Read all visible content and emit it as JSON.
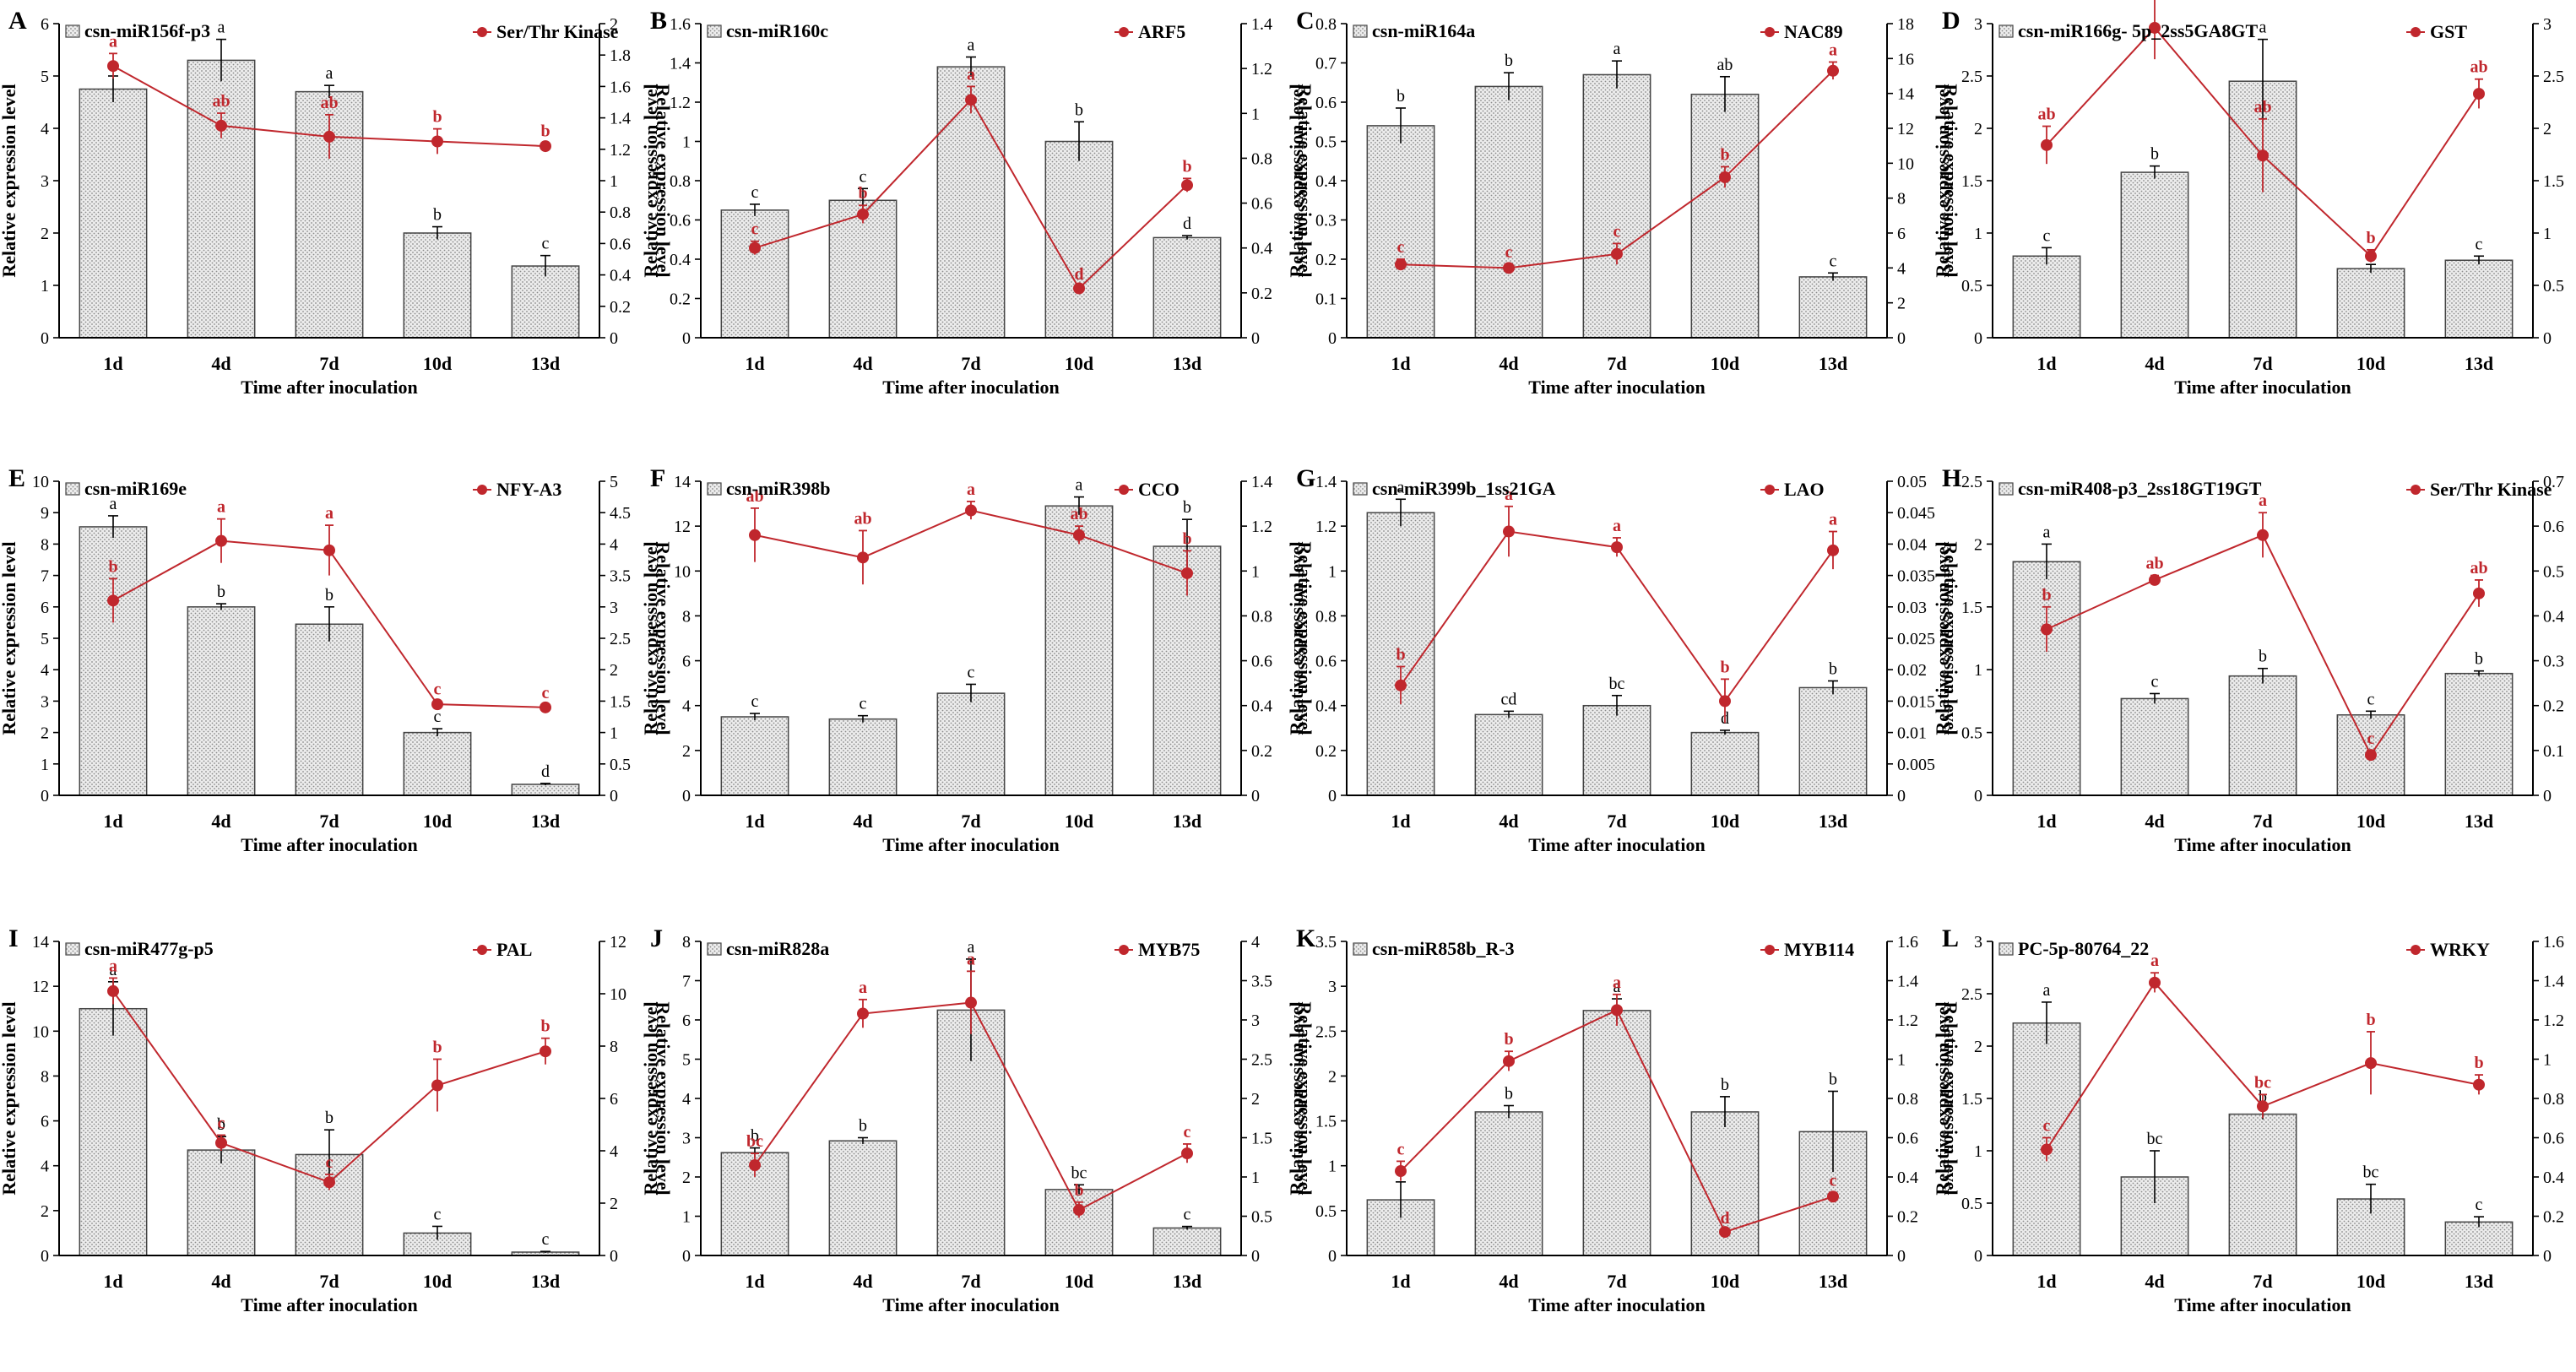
{
  "figure": {
    "common": {
      "xlabel": "Time after inoculation",
      "ylabel_left": "Relative expression level",
      "ylabel_right": "Relative expression level",
      "categories": [
        "1d",
        "4d",
        "7d",
        "10d",
        "13d"
      ]
    },
    "colors": {
      "bar_fill": "#d8d8d8",
      "line": "#c0272d",
      "axis": "#000000"
    }
  },
  "chart_data": [
    {
      "type": "bar+line",
      "panel": "A",
      "title": "",
      "bar_series": "csn-miR156f-p3",
      "line_series": "Ser/Thr Kinase",
      "xlabel": "Time after inoculation",
      "ylabel": "Relative expression level",
      "y2label": "Relative expression level",
      "categories": [
        "1d",
        "4d",
        "7d",
        "10d",
        "13d"
      ],
      "bar_values": [
        4.75,
        5.3,
        4.7,
        2.0,
        1.37
      ],
      "bar_err": [
        0.25,
        0.4,
        0.12,
        0.12,
        0.2
      ],
      "bar_letters": [
        "a",
        "a",
        "a",
        "b",
        "c"
      ],
      "line_values": [
        1.73,
        1.35,
        1.28,
        1.25,
        1.22
      ],
      "line_err": [
        0.08,
        0.08,
        0.14,
        0.08,
        0.02
      ],
      "line_letters": [
        "a",
        "ab",
        "ab",
        "b",
        "b"
      ],
      "ylim": [
        0,
        6
      ],
      "yticks": [
        "0",
        "1",
        "2",
        "3",
        "4",
        "5",
        "6"
      ],
      "y2lim": [
        0,
        2
      ],
      "y2ticks": [
        "0",
        "0.2",
        "0.4",
        "0.6",
        "0.8",
        "1",
        "1.2",
        "1.4",
        "1.6",
        "1.8",
        "2"
      ]
    },
    {
      "type": "bar+line",
      "panel": "B",
      "title": "",
      "bar_series": "csn-miR160c",
      "line_series": "ARF5",
      "xlabel": "Time after inoculation",
      "ylabel": "Relative expression level",
      "y2label": "Relative expression level",
      "categories": [
        "1d",
        "4d",
        "7d",
        "10d",
        "13d"
      ],
      "bar_values": [
        0.65,
        0.7,
        1.38,
        1.0,
        0.51
      ],
      "bar_err": [
        0.03,
        0.06,
        0.05,
        0.1,
        0.01
      ],
      "bar_letters": [
        "c",
        "c",
        "a",
        "b",
        "d"
      ],
      "line_values": [
        0.4,
        0.55,
        1.06,
        0.22,
        0.68
      ],
      "line_err": [
        0.03,
        0.04,
        0.06,
        0.01,
        0.03
      ],
      "line_letters": [
        "c",
        "b",
        "a",
        "d",
        "b"
      ],
      "ylim": [
        0,
        1.6
      ],
      "yticks": [
        "0",
        "0.2",
        "0.4",
        "0.6",
        "0.8",
        "1",
        "1.2",
        "1.4",
        "1.6"
      ],
      "y2lim": [
        0,
        1.4
      ],
      "y2ticks": [
        "0",
        "0.2",
        "0.4",
        "0.6",
        "0.8",
        "1",
        "1.2",
        "1.4"
      ]
    },
    {
      "type": "bar+line",
      "panel": "C",
      "title": "",
      "bar_series": "csn-miR164a",
      "line_series": "NAC89",
      "xlabel": "Time after inoculation",
      "ylabel": "Relative expression level",
      "y2label": "Relative expression level",
      "categories": [
        "1d",
        "4d",
        "7d",
        "10d",
        "13d"
      ],
      "bar_values": [
        0.54,
        0.64,
        0.67,
        0.62,
        0.155
      ],
      "bar_err": [
        0.045,
        0.035,
        0.035,
        0.045,
        0.01
      ],
      "bar_letters": [
        "b",
        "b",
        "a",
        "ab",
        "c"
      ],
      "line_values": [
        4.2,
        4.0,
        4.8,
        9.2,
        15.3
      ],
      "line_err": [
        0.3,
        0.2,
        0.6,
        0.6,
        0.5
      ],
      "line_letters": [
        "c",
        "c",
        "c",
        "b",
        "a"
      ],
      "ylim": [
        0,
        0.8
      ],
      "yticks": [
        "0",
        "0.1",
        "0.2",
        "0.3",
        "0.4",
        "0.5",
        "0.6",
        "0.7",
        "0.8"
      ],
      "y2lim": [
        0,
        18
      ],
      "y2ticks": [
        "0",
        "2",
        "4",
        "6",
        "8",
        "10",
        "12",
        "14",
        "16",
        "18"
      ]
    },
    {
      "type": "bar+line",
      "panel": "D",
      "title": "",
      "bar_series": "csn-miR166g- 5p_2ss5GA8GT",
      "line_series": "GST",
      "xlabel": "Time after inoculation",
      "ylabel": "Relative expression level",
      "y2label": "Relative expression level",
      "categories": [
        "1d",
        "4d",
        "7d",
        "10d",
        "13d"
      ],
      "bar_values": [
        0.78,
        1.58,
        2.45,
        0.66,
        0.74
      ],
      "bar_err": [
        0.08,
        0.06,
        0.4,
        0.04,
        0.04
      ],
      "bar_letters": [
        "c",
        "b",
        "a",
        "c",
        "c"
      ],
      "line_values": [
        1.84,
        2.96,
        1.74,
        0.78,
        2.33
      ],
      "line_err": [
        0.18,
        0.3,
        0.35,
        0.06,
        0.14
      ],
      "line_letters": [
        "ab",
        "a",
        "ab",
        "b",
        "ab"
      ],
      "ylim": [
        0,
        3
      ],
      "yticks": [
        "0",
        "0.5",
        "1",
        "1.5",
        "2",
        "2.5",
        "3"
      ],
      "y2lim": [
        0,
        3
      ],
      "y2ticks": [
        "0",
        "0.5",
        "1",
        "1.5",
        "2",
        "2.5",
        "3"
      ]
    },
    {
      "type": "bar+line",
      "panel": "E",
      "title": "",
      "bar_series": "csn-miR169e",
      "line_series": "NFY-A3",
      "xlabel": "Time after inoculation",
      "ylabel": "Relative expression level",
      "y2label": "Relative expression level",
      "categories": [
        "1d",
        "4d",
        "7d",
        "10d",
        "13d"
      ],
      "bar_values": [
        8.55,
        6.0,
        5.45,
        2.0,
        0.35
      ],
      "bar_err": [
        0.35,
        0.1,
        0.55,
        0.12,
        0.03
      ],
      "bar_letters": [
        "a",
        "b",
        "b",
        "c",
        "d"
      ],
      "line_values": [
        3.1,
        4.05,
        3.9,
        1.45,
        1.4
      ],
      "line_err": [
        0.35,
        0.35,
        0.4,
        0.05,
        0.04
      ],
      "line_letters": [
        "b",
        "a",
        "a",
        "c",
        "c"
      ],
      "ylim": [
        0,
        10
      ],
      "yticks": [
        "0",
        "1",
        "2",
        "3",
        "4",
        "5",
        "6",
        "7",
        "8",
        "9",
        "10"
      ],
      "y2lim": [
        0,
        5
      ],
      "y2ticks": [
        "0",
        "0.5",
        "1",
        "1.5",
        "2",
        "2.5",
        "3",
        "3.5",
        "4",
        "4.5",
        "5"
      ]
    },
    {
      "type": "bar+line",
      "panel": "F",
      "title": "",
      "bar_series": "csn-miR398b",
      "line_series": "CCO",
      "xlabel": "Time after inoculation",
      "ylabel": "Relative expression level",
      "y2label": "Relative expression level",
      "categories": [
        "1d",
        "4d",
        "7d",
        "10d",
        "13d"
      ],
      "bar_values": [
        3.5,
        3.4,
        4.55,
        12.9,
        11.1
      ],
      "bar_err": [
        0.15,
        0.15,
        0.4,
        0.4,
        1.2
      ],
      "bar_letters": [
        "c",
        "c",
        "c",
        "a",
        "b"
      ],
      "line_values": [
        1.16,
        1.06,
        1.27,
        1.16,
        0.99
      ],
      "line_err": [
        0.12,
        0.12,
        0.04,
        0.04,
        0.1
      ],
      "line_letters": [
        "ab",
        "ab",
        "a",
        "ab",
        "b"
      ],
      "ylim": [
        0,
        14
      ],
      "yticks": [
        "0",
        "2",
        "4",
        "6",
        "8",
        "10",
        "12",
        "14"
      ],
      "y2lim": [
        0,
        1.4
      ],
      "y2ticks": [
        "0",
        "0.2",
        "0.4",
        "0.6",
        "0.8",
        "1",
        "1.2",
        "1.4"
      ]
    },
    {
      "type": "bar+line",
      "panel": "G",
      "title": "",
      "bar_series": "csn-miR399b_1ss21GA",
      "line_series": "LAO",
      "xlabel": "Time after inoculation",
      "ylabel": "Relative expression level",
      "y2label": "Relative expression level",
      "categories": [
        "1d",
        "4d",
        "7d",
        "10d",
        "13d"
      ],
      "bar_values": [
        1.26,
        0.36,
        0.4,
        0.28,
        0.48
      ],
      "bar_err": [
        0.06,
        0.015,
        0.045,
        0.01,
        0.03
      ],
      "bar_letters": [
        "a",
        "cd",
        "bc",
        "d",
        "b"
      ],
      "line_values": [
        0.0175,
        0.042,
        0.0395,
        0.015,
        0.039
      ],
      "line_err": [
        0.003,
        0.004,
        0.0015,
        0.0035,
        0.003
      ],
      "line_letters": [
        "b",
        "a",
        "a",
        "b",
        "a"
      ],
      "ylim": [
        0,
        1.4
      ],
      "yticks": [
        "0",
        "0.2",
        "0.4",
        "0.6",
        "0.8",
        "1",
        "1.2",
        "1.4"
      ],
      "y2lim": [
        0,
        0.05
      ],
      "y2ticks": [
        "0",
        "0.005",
        "0.01",
        "0.015",
        "0.02",
        "0.025",
        "0.03",
        "0.035",
        "0.04",
        "0.045",
        "0.05"
      ]
    },
    {
      "type": "bar+line",
      "panel": "H",
      "title": "",
      "bar_series": "csn-miR408-p3_2ss18GT19GT",
      "line_series": "Ser/Thr Kinase",
      "xlabel": "Time after inoculation",
      "ylabel": "Relative expression level",
      "y2label": "Relative expression level",
      "categories": [
        "1d",
        "4d",
        "7d",
        "10d",
        "13d"
      ],
      "bar_values": [
        1.86,
        0.77,
        0.95,
        0.64,
        0.97
      ],
      "bar_err": [
        0.14,
        0.04,
        0.06,
        0.03,
        0.02
      ],
      "bar_letters": [
        "a",
        "c",
        "b",
        "c",
        "b"
      ],
      "line_values": [
        0.37,
        0.48,
        0.58,
        0.09,
        0.45
      ],
      "line_err": [
        0.05,
        0.01,
        0.05,
        0.01,
        0.03
      ],
      "line_letters": [
        "b",
        "ab",
        "a",
        "c",
        "ab"
      ],
      "ylim": [
        0,
        2.5
      ],
      "yticks": [
        "0",
        "0.5",
        "1",
        "1.5",
        "2",
        "2.5"
      ],
      "y2lim": [
        0,
        0.7
      ],
      "y2ticks": [
        "0",
        "0.1",
        "0.2",
        "0.3",
        "0.4",
        "0.5",
        "0.6",
        "0.7"
      ]
    },
    {
      "type": "bar+line",
      "panel": "I",
      "title": "",
      "bar_series": "csn-miR477g-p5",
      "line_series": "PAL",
      "xlabel": "Time after inoculation",
      "ylabel": "Relative expression level",
      "y2label": "Relative expression level",
      "categories": [
        "1d",
        "4d",
        "7d",
        "10d",
        "13d"
      ],
      "bar_values": [
        11.0,
        4.7,
        4.5,
        1.0,
        0.15
      ],
      "bar_err": [
        1.2,
        0.6,
        1.1,
        0.3,
        0.03
      ],
      "bar_letters": [
        "a",
        "b",
        "b",
        "c",
        "c"
      ],
      "line_values": [
        10.1,
        4.3,
        2.8,
        6.5,
        7.8
      ],
      "line_err": [
        0.5,
        0.3,
        0.3,
        1.0,
        0.5
      ],
      "line_letters": [
        "a",
        "c",
        "c",
        "b",
        "b"
      ],
      "ylim": [
        0,
        14
      ],
      "yticks": [
        "0",
        "2",
        "4",
        "6",
        "8",
        "10",
        "12",
        "14"
      ],
      "y2lim": [
        0,
        12
      ],
      "y2ticks": [
        "0",
        "2",
        "4",
        "6",
        "8",
        "10",
        "12"
      ]
    },
    {
      "type": "bar+line",
      "panel": "J",
      "title": "",
      "bar_series": "csn-miR828a",
      "line_series": "MYB75",
      "xlabel": "Time after inoculation",
      "ylabel": "Relative expression level",
      "y2label": "Relative expression level",
      "categories": [
        "1d",
        "4d",
        "7d",
        "10d",
        "13d"
      ],
      "bar_values": [
        2.62,
        2.92,
        6.25,
        1.68,
        0.7
      ],
      "bar_err": [
        0.12,
        0.08,
        1.3,
        0.12,
        0.04
      ],
      "bar_letters": [
        "b",
        "b",
        "a",
        "bc",
        "c"
      ],
      "line_values": [
        1.15,
        3.08,
        3.22,
        0.58,
        1.3
      ],
      "line_err": [
        0.15,
        0.18,
        0.4,
        0.1,
        0.12
      ],
      "line_letters": [
        "bc",
        "a",
        "a",
        "b",
        "c"
      ],
      "ylim": [
        0,
        8
      ],
      "yticks": [
        "0",
        "1",
        "2",
        "3",
        "4",
        "5",
        "6",
        "7",
        "8"
      ],
      "y2lim": [
        0,
        4
      ],
      "y2ticks": [
        "0",
        "0.5",
        "1",
        "1.5",
        "2",
        "2.5",
        "3",
        "3.5",
        "4"
      ]
    },
    {
      "type": "bar+line",
      "panel": "K",
      "title": "",
      "bar_series": "csn-miR858b_R-3",
      "line_series": "MYB114",
      "xlabel": "Time after inoculation",
      "ylabel": "Relative expression level",
      "y2label": "Relative expression level",
      "categories": [
        "1d",
        "4d",
        "7d",
        "10d",
        "13d"
      ],
      "bar_values": [
        0.62,
        1.6,
        2.73,
        1.6,
        1.38
      ],
      "bar_err": [
        0.2,
        0.07,
        0.13,
        0.17,
        0.45
      ],
      "bar_letters": [
        "c",
        "b",
        "a",
        "b",
        "b"
      ],
      "line_values": [
        0.43,
        0.99,
        1.25,
        0.12,
        0.3
      ],
      "line_err": [
        0.05,
        0.05,
        0.08,
        0.01,
        0.02
      ],
      "line_letters": [
        "c",
        "b",
        "a",
        "d",
        "c"
      ],
      "ylim": [
        0,
        3.5
      ],
      "yticks": [
        "0",
        "0.5",
        "1",
        "1.5",
        "2",
        "2.5",
        "3",
        "3.5"
      ],
      "y2lim": [
        0,
        1.6
      ],
      "y2ticks": [
        "0",
        "0.2",
        "0.4",
        "0.6",
        "0.8",
        "1",
        "1.2",
        "1.4",
        "1.6"
      ]
    },
    {
      "type": "bar+line",
      "panel": "L",
      "title": "",
      "bar_series": "PC-5p-80764_22",
      "line_series": "WRKY",
      "xlabel": "Time after inoculation",
      "ylabel": "Relative expression level",
      "y2label": "Relative expression level",
      "categories": [
        "1d",
        "4d",
        "7d",
        "10d",
        "13d"
      ],
      "bar_values": [
        2.22,
        0.75,
        1.35,
        0.54,
        0.32
      ],
      "bar_err": [
        0.2,
        0.25,
        0.05,
        0.14,
        0.05
      ],
      "bar_letters": [
        "a",
        "bc",
        "b",
        "bc",
        "c"
      ],
      "line_values": [
        0.54,
        1.39,
        0.76,
        0.98,
        0.87
      ],
      "line_err": [
        0.06,
        0.05,
        0.06,
        0.16,
        0.05
      ],
      "line_letters": [
        "c",
        "a",
        "bc",
        "b",
        "b"
      ],
      "ylim": [
        0,
        3
      ],
      "yticks": [
        "0",
        "0.5",
        "1",
        "1.5",
        "2",
        "2.5",
        "3"
      ],
      "y2lim": [
        0,
        1.6
      ],
      "y2ticks": [
        "0",
        "0.2",
        "0.4",
        "0.6",
        "0.8",
        "1",
        "1.2",
        "1.4",
        "1.6"
      ]
    }
  ]
}
